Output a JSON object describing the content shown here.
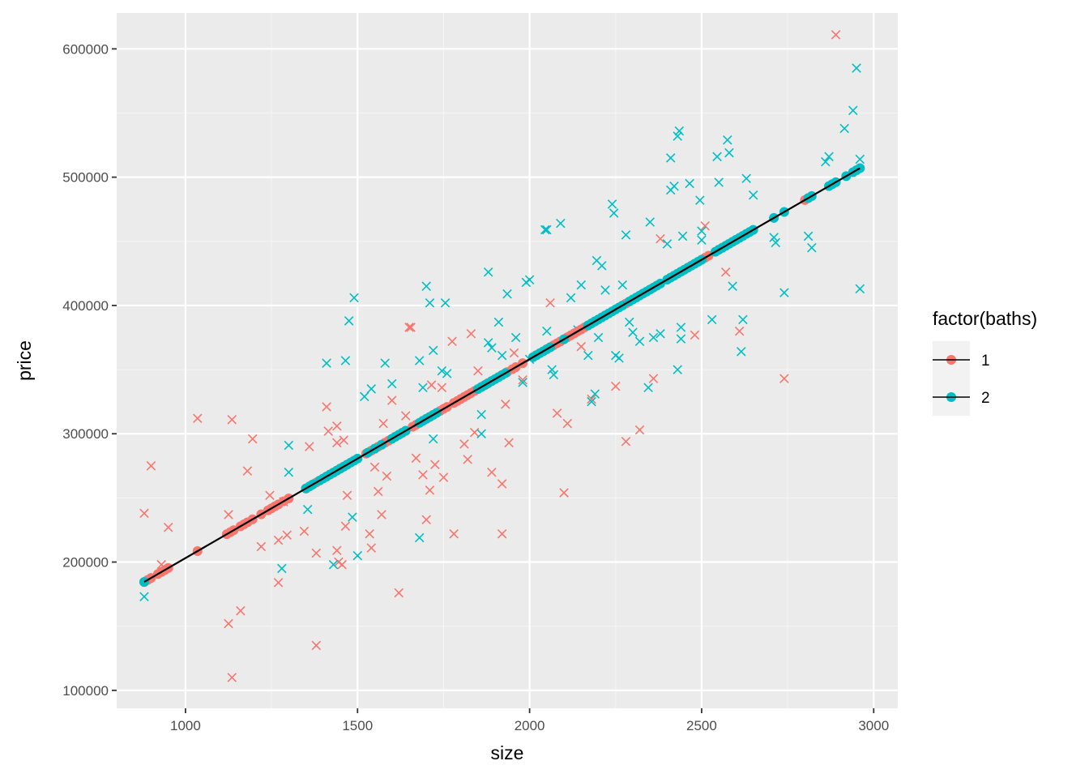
{
  "chart_data": {
    "type": "scatter",
    "title": "",
    "xlabel": "size",
    "ylabel": "price",
    "xlim": [
      800,
      3070
    ],
    "ylim": [
      86000,
      628000
    ],
    "x_ticks": [
      1000,
      1500,
      2000,
      2500,
      3000
    ],
    "y_ticks": [
      100000,
      200000,
      300000,
      400000,
      500000,
      600000
    ],
    "grid": true,
    "legend": {
      "title": "factor(baths)",
      "position": "right",
      "entries": [
        {
          "label": "1",
          "color": "#F8766D"
        },
        {
          "label": "2",
          "color": "#00BFC4"
        }
      ]
    },
    "fit_line": {
      "x": [
        880,
        2960
      ],
      "y": [
        184500,
        507000
      ],
      "color": "#000000"
    },
    "series": [
      {
        "name": "1",
        "color": "#F8766D",
        "observed": [
          [
            880,
            238000
          ],
          [
            900,
            275000
          ],
          [
            930,
            198000
          ],
          [
            950,
            227000
          ],
          [
            1035,
            312000
          ],
          [
            1125,
            237000
          ],
          [
            1125,
            152000
          ],
          [
            1135,
            311000
          ],
          [
            1135,
            110000
          ],
          [
            1160,
            162000
          ],
          [
            1180,
            271000
          ],
          [
            1195,
            296000
          ],
          [
            1220,
            212000
          ],
          [
            1245,
            252000
          ],
          [
            1270,
            184000
          ],
          [
            1270,
            217000
          ],
          [
            1285,
            247000
          ],
          [
            1295,
            221000
          ],
          [
            1345,
            224000
          ],
          [
            1360,
            290000
          ],
          [
            1380,
            207000
          ],
          [
            1380,
            135000
          ],
          [
            1410,
            321000
          ],
          [
            1415,
            302000
          ],
          [
            1440,
            306000
          ],
          [
            1440,
            293000
          ],
          [
            1440,
            209000
          ],
          [
            1445,
            200000
          ],
          [
            1455,
            198000
          ],
          [
            1460,
            295000
          ],
          [
            1465,
            228000
          ],
          [
            1470,
            252000
          ],
          [
            1535,
            222000
          ],
          [
            1540,
            211000
          ],
          [
            1550,
            274000
          ],
          [
            1560,
            255000
          ],
          [
            1570,
            237000
          ],
          [
            1575,
            308000
          ],
          [
            1585,
            267000
          ],
          [
            1600,
            326000
          ],
          [
            1620,
            176000
          ],
          [
            1640,
            314000
          ],
          [
            1650,
            383000
          ],
          [
            1655,
            383000
          ],
          [
            1670,
            281000
          ],
          [
            1690,
            268000
          ],
          [
            1700,
            233000
          ],
          [
            1710,
            256000
          ],
          [
            1715,
            338000
          ],
          [
            1725,
            276000
          ],
          [
            1745,
            336000
          ],
          [
            1750,
            266000
          ],
          [
            1775,
            372000
          ],
          [
            1780,
            222000
          ],
          [
            1810,
            292000
          ],
          [
            1820,
            280000
          ],
          [
            1830,
            378000
          ],
          [
            1840,
            301000
          ],
          [
            1850,
            349000
          ],
          [
            1890,
            270000
          ],
          [
            1920,
            261000
          ],
          [
            1920,
            222000
          ],
          [
            1930,
            323000
          ],
          [
            1940,
            293000
          ],
          [
            1955,
            363000
          ],
          [
            1980,
            342000
          ],
          [
            2060,
            402000
          ],
          [
            2080,
            316000
          ],
          [
            2100,
            254000
          ],
          [
            2110,
            308000
          ],
          [
            2150,
            368000
          ],
          [
            2180,
            327000
          ],
          [
            2250,
            337000
          ],
          [
            2280,
            294000
          ],
          [
            2320,
            303000
          ],
          [
            2360,
            343000
          ],
          [
            2380,
            452000
          ],
          [
            2480,
            377000
          ],
          [
            2510,
            462000
          ],
          [
            2570,
            426000
          ],
          [
            2610,
            380000
          ],
          [
            2740,
            343000
          ],
          [
            2890,
            611000
          ]
        ],
        "fitted_sizes": [
          880,
          890,
          900,
          920,
          930,
          940,
          950,
          1035,
          1120,
          1130,
          1140,
          1160,
          1170,
          1180,
          1195,
          1220,
          1240,
          1250,
          1260,
          1270,
          1285,
          1300,
          1350,
          1365,
          1380,
          1400,
          1410,
          1420,
          1430,
          1440,
          1450,
          1460,
          1470,
          1525,
          1540,
          1550,
          1560,
          1570,
          1580,
          1590,
          1600,
          1610,
          1620,
          1630,
          1640,
          1660,
          1670,
          1690,
          1700,
          1710,
          1720,
          1730,
          1740,
          1750,
          1760,
          1780,
          1790,
          1800,
          1810,
          1820,
          1830,
          1840,
          1860,
          1875,
          1890,
          1920,
          1935,
          1950,
          1960,
          1980,
          2020,
          2050,
          2060,
          2070,
          2080,
          2090,
          2100,
          2110,
          2120,
          2130,
          2140,
          2150,
          2160,
          2170,
          2180,
          2190,
          2280,
          2500,
          2510,
          2520,
          2560,
          2580,
          2590,
          2600,
          2800,
          2810
        ]
      },
      {
        "name": "2",
        "color": "#00BFC4",
        "observed": [
          [
            880,
            173000
          ],
          [
            1280,
            195000
          ],
          [
            1300,
            291000
          ],
          [
            1300,
            270000
          ],
          [
            1355,
            241000
          ],
          [
            1410,
            355000
          ],
          [
            1430,
            198000
          ],
          [
            1465,
            357000
          ],
          [
            1475,
            388000
          ],
          [
            1485,
            235000
          ],
          [
            1490,
            406000
          ],
          [
            1500,
            205000
          ],
          [
            1520,
            329000
          ],
          [
            1540,
            335000
          ],
          [
            1580,
            355000
          ],
          [
            1600,
            339000
          ],
          [
            1680,
            219000
          ],
          [
            1680,
            357000
          ],
          [
            1690,
            336000
          ],
          [
            1700,
            415000
          ],
          [
            1710,
            402000
          ],
          [
            1720,
            365000
          ],
          [
            1720,
            296000
          ],
          [
            1745,
            349000
          ],
          [
            1755,
            402000
          ],
          [
            1760,
            347000
          ],
          [
            1860,
            315000
          ],
          [
            1860,
            300000
          ],
          [
            1880,
            426000
          ],
          [
            1880,
            371000
          ],
          [
            1890,
            367000
          ],
          [
            1910,
            387000
          ],
          [
            1920,
            361000
          ],
          [
            1935,
            409000
          ],
          [
            1960,
            375000
          ],
          [
            1980,
            340000
          ],
          [
            1990,
            418000
          ],
          [
            2000,
            420000
          ],
          [
            2000,
            358000
          ],
          [
            2045,
            459000
          ],
          [
            2050,
            459000
          ],
          [
            2050,
            380000
          ],
          [
            2065,
            350000
          ],
          [
            2070,
            346000
          ],
          [
            2090,
            464000
          ],
          [
            2120,
            406000
          ],
          [
            2140,
            381000
          ],
          [
            2150,
            416000
          ],
          [
            2170,
            361000
          ],
          [
            2180,
            325000
          ],
          [
            2190,
            331000
          ],
          [
            2195,
            435000
          ],
          [
            2200,
            375000
          ],
          [
            2210,
            431000
          ],
          [
            2220,
            412000
          ],
          [
            2240,
            479000
          ],
          [
            2245,
            472000
          ],
          [
            2250,
            361000
          ],
          [
            2260,
            359000
          ],
          [
            2270,
            416000
          ],
          [
            2280,
            455000
          ],
          [
            2290,
            387000
          ],
          [
            2300,
            379000
          ],
          [
            2320,
            372000
          ],
          [
            2345,
            336000
          ],
          [
            2350,
            465000
          ],
          [
            2360,
            375000
          ],
          [
            2380,
            378000
          ],
          [
            2400,
            448000
          ],
          [
            2410,
            515000
          ],
          [
            2410,
            490000
          ],
          [
            2420,
            493000
          ],
          [
            2430,
            532000
          ],
          [
            2430,
            350000
          ],
          [
            2435,
            536000
          ],
          [
            2440,
            383000
          ],
          [
            2440,
            374000
          ],
          [
            2445,
            454000
          ],
          [
            2465,
            495000
          ],
          [
            2495,
            482000
          ],
          [
            2500,
            451000
          ],
          [
            2500,
            458000
          ],
          [
            2530,
            389000
          ],
          [
            2545,
            516000
          ],
          [
            2550,
            496000
          ],
          [
            2575,
            529000
          ],
          [
            2580,
            519000
          ],
          [
            2590,
            415000
          ],
          [
            2615,
            364000
          ],
          [
            2620,
            389000
          ],
          [
            2630,
            499000
          ],
          [
            2650,
            486000
          ],
          [
            2710,
            453000
          ],
          [
            2715,
            449000
          ],
          [
            2740,
            410000
          ],
          [
            2810,
            454000
          ],
          [
            2820,
            445000
          ],
          [
            2860,
            512000
          ],
          [
            2870,
            516000
          ],
          [
            2915,
            538000
          ],
          [
            2940,
            552000
          ],
          [
            2950,
            585000
          ],
          [
            2960,
            514000
          ],
          [
            2960,
            413000
          ]
        ],
        "fitted_sizes": [
          880,
          1350,
          1360,
          1370,
          1390,
          1400,
          1410,
          1420,
          1430,
          1440,
          1450,
          1460,
          1470,
          1480,
          1490,
          1500,
          1530,
          1550,
          1570,
          1600,
          1610,
          1620,
          1630,
          1640,
          1680,
          1690,
          1700,
          1710,
          1720,
          1730,
          1850,
          1860,
          1870,
          1880,
          1890,
          1900,
          1910,
          1920,
          1930,
          2010,
          2020,
          2030,
          2040,
          2050,
          2060,
          2100,
          2170,
          2180,
          2190,
          2200,
          2210,
          2220,
          2230,
          2240,
          2250,
          2260,
          2270,
          2290,
          2300,
          2310,
          2320,
          2330,
          2340,
          2350,
          2360,
          2370,
          2380,
          2400,
          2410,
          2420,
          2430,
          2440,
          2450,
          2460,
          2470,
          2480,
          2490,
          2500,
          2540,
          2550,
          2560,
          2570,
          2580,
          2590,
          2600,
          2610,
          2620,
          2630,
          2640,
          2650,
          2710,
          2740,
          2810,
          2820,
          2870,
          2880,
          2890,
          2920,
          2940,
          2950,
          2960
        ]
      }
    ]
  }
}
